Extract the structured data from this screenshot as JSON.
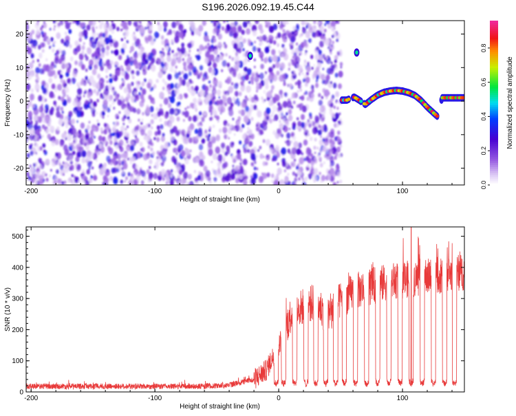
{
  "title": "S196.2026.092.19.45.C44",
  "chart_data": [
    {
      "type": "heatmap",
      "xlabel": "Height of straight line (km)",
      "ylabel": "Frequency (Hz)",
      "xlim": [
        -204,
        150
      ],
      "ylim": [
        -25,
        24
      ],
      "xticks": [
        -200,
        -100,
        0,
        100
      ],
      "yticks": [
        -20,
        -10,
        0,
        10,
        20
      ],
      "grid": false,
      "colorbar": {
        "label": "Normalized spectral amplitude",
        "range": [
          0.0,
          0.96
        ],
        "ticks": [
          0.0,
          0.2,
          0.4,
          0.6,
          0.8
        ],
        "colormap": "white-purple-blue-cyan-green-yellow-red-pink"
      },
      "noise_region_x": [
        -204,
        49
      ],
      "signal_track": [
        {
          "x": 51,
          "y": 0.3
        },
        {
          "x": 55,
          "y": 0.3
        },
        {
          "x": 61,
          "y": 1.2
        },
        {
          "x": 65,
          "y": 0.3
        },
        {
          "x": 70,
          "y": -1.0
        },
        {
          "x": 75,
          "y": 0.5
        },
        {
          "x": 80,
          "y": 1.8
        },
        {
          "x": 85,
          "y": 2.6
        },
        {
          "x": 90,
          "y": 3.0
        },
        {
          "x": 95,
          "y": 3.2
        },
        {
          "x": 100,
          "y": 3.0
        },
        {
          "x": 105,
          "y": 2.5
        },
        {
          "x": 110,
          "y": 1.7
        },
        {
          "x": 115,
          "y": 0.2
        },
        {
          "x": 120,
          "y": -1.8
        },
        {
          "x": 125,
          "y": -3.5
        },
        {
          "x": 128,
          "y": -4.5
        },
        {
          "x": 132,
          "y": 1.0
        },
        {
          "x": 140,
          "y": 1.0
        },
        {
          "x": 150,
          "y": 1.0
        }
      ],
      "isolated_spots": [
        {
          "x": 63,
          "y": 14.5
        },
        {
          "x": -23,
          "y": 13.5
        }
      ]
    },
    {
      "type": "line",
      "xlabel": "Height of straight line (km)",
      "ylabel": "SNR (10 * v/v)",
      "xlim": [
        -204,
        150
      ],
      "ylim": [
        0,
        530
      ],
      "xticks": [
        -200,
        -100,
        0,
        100
      ],
      "yticks": [
        0,
        100,
        200,
        300,
        400,
        500
      ],
      "grid": false,
      "series": [
        {
          "color": "#e83a3a",
          "baseline": [
            {
              "x": -204,
              "y": 18
            },
            {
              "x": -60,
              "y": 18
            },
            {
              "x": -40,
              "y": 22
            },
            {
              "x": -20,
              "y": 40
            },
            {
              "x": -10,
              "y": 70
            },
            {
              "x": 0,
              "y": 150
            },
            {
              "x": 10,
              "y": 250
            },
            {
              "x": 20,
              "y": 275
            },
            {
              "x": 30,
              "y": 290
            },
            {
              "x": 40,
              "y": 240
            },
            {
              "x": 50,
              "y": 295
            },
            {
              "x": 60,
              "y": 320
            },
            {
              "x": 70,
              "y": 335
            },
            {
              "x": 80,
              "y": 345
            },
            {
              "x": 90,
              "y": 355
            },
            {
              "x": 100,
              "y": 360
            },
            {
              "x": 110,
              "y": 365
            },
            {
              "x": 120,
              "y": 370
            },
            {
              "x": 130,
              "y": 375
            },
            {
              "x": 140,
              "y": 380
            },
            {
              "x": 150,
              "y": 385
            }
          ],
          "dropouts_x": [
            -2,
            4,
            13,
            22,
            30,
            38,
            46,
            53,
            62,
            71,
            80,
            89,
            98,
            107,
            116,
            125,
            134,
            142
          ],
          "dropout_level": 25,
          "peak": {
            "x": 107,
            "y": 530
          }
        }
      ]
    }
  ]
}
